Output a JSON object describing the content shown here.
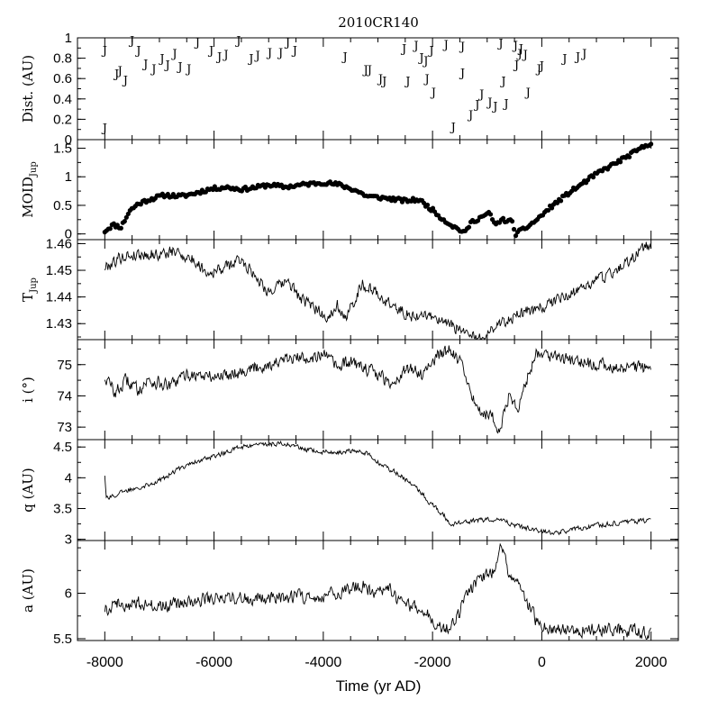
{
  "chart_data": {
    "type": "line",
    "title": "2010CR140",
    "xlabel": "Time (yr AD)",
    "xlim": [
      -8500,
      2500
    ],
    "xticks": [
      -8000,
      -6000,
      -4000,
      -2000,
      0,
      2000
    ],
    "xtick_labels": [
      "-8000",
      "-6000",
      "-4000",
      "-2000",
      "0",
      "2000"
    ],
    "panels": [
      {
        "id": "dist",
        "type": "scatter",
        "ylabel": "Dist. (AU)",
        "ylim": [
          0,
          1
        ],
        "yticks": [
          0,
          0.2,
          0.4,
          0.6,
          0.8,
          1
        ],
        "ytick_labels": [
          "0",
          "0.2",
          "0.4",
          "0.6",
          "0.8",
          "1"
        ],
        "marker": "J",
        "points": [
          [
            -8000,
            0.88
          ],
          [
            -8000,
            0.12
          ],
          [
            -7780,
            0.65
          ],
          [
            -7720,
            0.68
          ],
          [
            -7620,
            0.59
          ],
          [
            -7500,
            0.98
          ],
          [
            -7380,
            0.88
          ],
          [
            -7250,
            0.75
          ],
          [
            -7100,
            0.7
          ],
          [
            -6950,
            0.8
          ],
          [
            -6850,
            0.74
          ],
          [
            -6720,
            0.85
          ],
          [
            -6620,
            0.72
          ],
          [
            -6460,
            0.7
          ],
          [
            -6300,
            0.96
          ],
          [
            -6050,
            0.88
          ],
          [
            -5900,
            0.82
          ],
          [
            -5780,
            0.84
          ],
          [
            -5550,
            0.98
          ],
          [
            -5320,
            0.8
          ],
          [
            -5200,
            0.83
          ],
          [
            -4980,
            0.86
          ],
          [
            -4780,
            0.86
          ],
          [
            -4650,
            0.96
          ],
          [
            -4520,
            0.88
          ],
          [
            -3600,
            0.82
          ],
          [
            -3220,
            0.69
          ],
          [
            -3150,
            0.69
          ],
          [
            -2950,
            0.6
          ],
          [
            -2880,
            0.58
          ],
          [
            -2520,
            0.9
          ],
          [
            -2450,
            0.58
          ],
          [
            -2300,
            0.93
          ],
          [
            -2200,
            0.81
          ],
          [
            -2120,
            0.78
          ],
          [
            -2100,
            0.6
          ],
          [
            -2020,
            0.88
          ],
          [
            -1980,
            0.47
          ],
          [
            -1750,
            0.94
          ],
          [
            -1620,
            0.13
          ],
          [
            -1450,
            0.92
          ],
          [
            -1450,
            0.66
          ],
          [
            -1300,
            0.25
          ],
          [
            -1180,
            0.35
          ],
          [
            -1100,
            0.45
          ],
          [
            -950,
            0.37
          ],
          [
            -850,
            0.33
          ],
          [
            -750,
            0.95
          ],
          [
            -700,
            0.58
          ],
          [
            -650,
            0.36
          ],
          [
            -480,
            0.93
          ],
          [
            -460,
            0.74
          ],
          [
            -400,
            0.85
          ],
          [
            -380,
            0.9
          ],
          [
            -300,
            0.84
          ],
          [
            -250,
            0.47
          ],
          [
            -50,
            0.7
          ],
          [
            0,
            0.73
          ],
          [
            420,
            0.8
          ],
          [
            660,
            0.82
          ],
          [
            780,
            0.85
          ]
        ]
      },
      {
        "id": "moid",
        "type": "scatter",
        "ylabel": "MOID",
        "ylabel_sub": "Jup",
        "ylim": [
          -0.1,
          1.65
        ],
        "yticks": [
          0,
          0.5,
          1,
          1.5
        ],
        "ytick_labels": [
          "0",
          "0.5",
          "1",
          "1.5"
        ],
        "anchors": [
          [
            -8000,
            0.05
          ],
          [
            -7850,
            0.16
          ],
          [
            -7700,
            0.12
          ],
          [
            -7550,
            0.4
          ],
          [
            -7400,
            0.52
          ],
          [
            -7200,
            0.6
          ],
          [
            -6900,
            0.68
          ],
          [
            -6600,
            0.66
          ],
          [
            -6400,
            0.7
          ],
          [
            -6100,
            0.78
          ],
          [
            -5800,
            0.82
          ],
          [
            -5500,
            0.78
          ],
          [
            -5200,
            0.82
          ],
          [
            -5000,
            0.86
          ],
          [
            -4700,
            0.82
          ],
          [
            -4400,
            0.86
          ],
          [
            -4000,
            0.9
          ],
          [
            -3700,
            0.86
          ],
          [
            -3400,
            0.76
          ],
          [
            -3200,
            0.66
          ],
          [
            -2800,
            0.62
          ],
          [
            -2500,
            0.58
          ],
          [
            -2250,
            0.6
          ],
          [
            -2000,
            0.42
          ],
          [
            -1800,
            0.25
          ],
          [
            -1600,
            0.12
          ],
          [
            -1400,
            0.02
          ],
          [
            -1300,
            0.2
          ],
          [
            -1100,
            0.3
          ],
          [
            -950,
            0.36
          ],
          [
            -850,
            0.14
          ],
          [
            -750,
            0.25
          ],
          [
            -550,
            0.22
          ],
          [
            -480,
            0.0
          ],
          [
            -300,
            0.1
          ],
          [
            -100,
            0.24
          ],
          [
            200,
            0.5
          ],
          [
            500,
            0.72
          ],
          [
            1000,
            1.05
          ],
          [
            1500,
            1.32
          ],
          [
            2000,
            1.6
          ]
        ]
      },
      {
        "id": "tjup",
        "type": "line",
        "ylabel": "T",
        "ylabel_sub": "Jup",
        "ylim": [
          1.424,
          1.4615
        ],
        "yticks": [
          1.43,
          1.44,
          1.45,
          1.46
        ],
        "ytick_labels": [
          "1.43",
          "1.44",
          "1.45",
          "1.46"
        ],
        "anchors": [
          [
            -8000,
            1.451
          ],
          [
            -7700,
            1.455
          ],
          [
            -7400,
            1.456
          ],
          [
            -7000,
            1.456
          ],
          [
            -6700,
            1.457
          ],
          [
            -6400,
            1.454
          ],
          [
            -6100,
            1.449
          ],
          [
            -5800,
            1.451
          ],
          [
            -5500,
            1.454
          ],
          [
            -5200,
            1.447
          ],
          [
            -5000,
            1.442
          ],
          [
            -4800,
            1.444
          ],
          [
            -4650,
            1.446
          ],
          [
            -4400,
            1.439
          ],
          [
            -4100,
            1.435
          ],
          [
            -3900,
            1.432
          ],
          [
            -3750,
            1.438
          ],
          [
            -3600,
            1.431
          ],
          [
            -3300,
            1.445
          ],
          [
            -3000,
            1.441
          ],
          [
            -2700,
            1.436
          ],
          [
            -2400,
            1.433
          ],
          [
            -2000,
            1.433
          ],
          [
            -1800,
            1.43
          ],
          [
            -1500,
            1.428
          ],
          [
            -1200,
            1.424
          ],
          [
            -900,
            1.428
          ],
          [
            -600,
            1.432
          ],
          [
            -300,
            1.434
          ],
          [
            0,
            1.436
          ],
          [
            500,
            1.441
          ],
          [
            1000,
            1.446
          ],
          [
            1500,
            1.452
          ],
          [
            2000,
            1.46
          ]
        ]
      },
      {
        "id": "incl",
        "type": "line",
        "ylabel": "i (°)",
        "ylim": [
          72.6,
          75.8
        ],
        "yticks": [
          73,
          74,
          75
        ],
        "ytick_labels": [
          "73",
          "74",
          "75"
        ],
        "anchors": [
          [
            -8000,
            74.6
          ],
          [
            -7800,
            74.1
          ],
          [
            -7600,
            74.5
          ],
          [
            -7400,
            74.2
          ],
          [
            -7200,
            74.5
          ],
          [
            -6800,
            74.3
          ],
          [
            -6500,
            74.7
          ],
          [
            -6000,
            74.6
          ],
          [
            -5500,
            74.8
          ],
          [
            -5000,
            75.0
          ],
          [
            -4500,
            75.2
          ],
          [
            -4000,
            75.3
          ],
          [
            -3700,
            74.9
          ],
          [
            -3500,
            75.1
          ],
          [
            -3000,
            74.7
          ],
          [
            -2800,
            74.4
          ],
          [
            -2400,
            74.9
          ],
          [
            -2200,
            74.7
          ],
          [
            -1900,
            75.3
          ],
          [
            -1700,
            75.5
          ],
          [
            -1500,
            75.1
          ],
          [
            -1300,
            74.0
          ],
          [
            -1100,
            73.5
          ],
          [
            -900,
            73.3
          ],
          [
            -800,
            72.8
          ],
          [
            -600,
            74.0
          ],
          [
            -450,
            73.6
          ],
          [
            -300,
            74.4
          ],
          [
            -100,
            75.4
          ],
          [
            200,
            75.3
          ],
          [
            600,
            75.1
          ],
          [
            1000,
            75.0
          ],
          [
            1500,
            74.9
          ],
          [
            2000,
            74.9
          ]
        ]
      },
      {
        "id": "q",
        "type": "line",
        "ylabel": "q (AU)",
        "ylim": [
          2.98,
          4.62
        ],
        "yticks": [
          3,
          3.5,
          4,
          4.5
        ],
        "ytick_labels": [
          "3",
          "3.5",
          "4",
          "4.5"
        ],
        "anchors": [
          [
            -8000,
            4.05
          ],
          [
            -7970,
            3.68
          ],
          [
            -7800,
            3.72
          ],
          [
            -7500,
            3.82
          ],
          [
            -7000,
            3.95
          ],
          [
            -6500,
            4.22
          ],
          [
            -6000,
            4.35
          ],
          [
            -5500,
            4.5
          ],
          [
            -5000,
            4.55
          ],
          [
            -4700,
            4.56
          ],
          [
            -4300,
            4.45
          ],
          [
            -3800,
            4.4
          ],
          [
            -3400,
            4.45
          ],
          [
            -3200,
            4.4
          ],
          [
            -3000,
            4.25
          ],
          [
            -2700,
            4.1
          ],
          [
            -2300,
            3.85
          ],
          [
            -2000,
            3.55
          ],
          [
            -1800,
            3.4
          ],
          [
            -1650,
            3.22
          ],
          [
            -1500,
            3.28
          ],
          [
            -1300,
            3.3
          ],
          [
            -1000,
            3.32
          ],
          [
            -700,
            3.3
          ],
          [
            -400,
            3.2
          ],
          [
            -100,
            3.15
          ],
          [
            200,
            3.1
          ],
          [
            700,
            3.18
          ],
          [
            1200,
            3.25
          ],
          [
            1600,
            3.28
          ],
          [
            2000,
            3.32
          ]
        ]
      },
      {
        "id": "a",
        "type": "line",
        "ylabel": "a (AU)",
        "ylim": [
          5.48,
          6.58
        ],
        "yticks": [
          5.5,
          6
        ],
        "ytick_labels": [
          "5.5",
          "6"
        ],
        "anchors": [
          [
            -8000,
            5.82
          ],
          [
            -7800,
            5.9
          ],
          [
            -7600,
            5.86
          ],
          [
            -7400,
            5.9
          ],
          [
            -7000,
            5.85
          ],
          [
            -6500,
            5.9
          ],
          [
            -6000,
            5.95
          ],
          [
            -5500,
            5.95
          ],
          [
            -5000,
            5.95
          ],
          [
            -4500,
            5.96
          ],
          [
            -4000,
            5.98
          ],
          [
            -3600,
            6.02
          ],
          [
            -3300,
            6.1
          ],
          [
            -3100,
            6.0
          ],
          [
            -2800,
            6.05
          ],
          [
            -2600,
            5.9
          ],
          [
            -2300,
            5.85
          ],
          [
            -2000,
            5.72
          ],
          [
            -1800,
            5.62
          ],
          [
            -1600,
            5.65
          ],
          [
            -1400,
            5.95
          ],
          [
            -1200,
            6.12
          ],
          [
            -1000,
            6.22
          ],
          [
            -850,
            6.25
          ],
          [
            -750,
            6.5
          ],
          [
            -600,
            6.2
          ],
          [
            -450,
            6.15
          ],
          [
            -300,
            5.95
          ],
          [
            -100,
            5.7
          ],
          [
            200,
            5.58
          ],
          [
            600,
            5.6
          ],
          [
            1000,
            5.6
          ],
          [
            1500,
            5.6
          ],
          [
            2000,
            5.57
          ]
        ]
      }
    ]
  }
}
